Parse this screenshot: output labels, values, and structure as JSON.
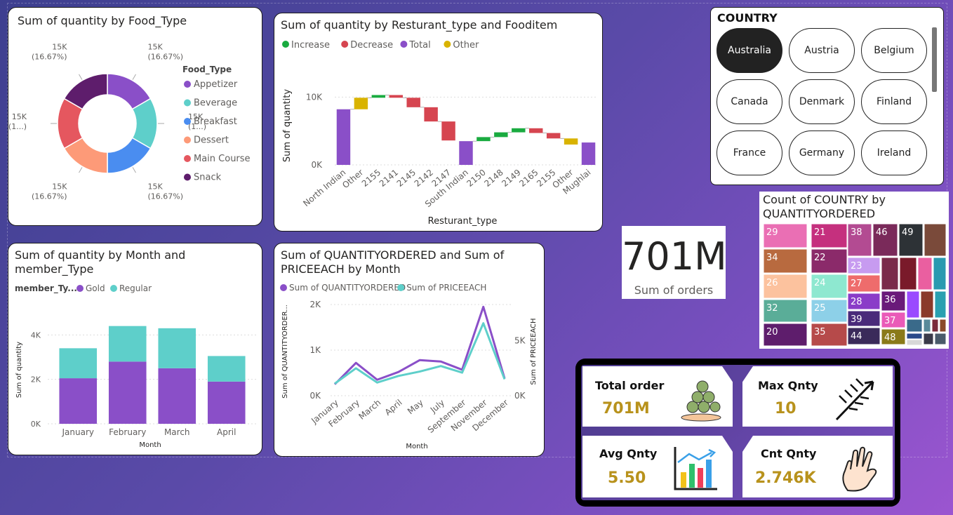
{
  "food_type_chart": {
    "title": "Sum of quantity by Food_Type",
    "legend_title": "Food_Type",
    "chart_data": {
      "type": "pie",
      "title": "Sum of quantity by Food_Type",
      "categories": [
        "Appetizer",
        "Beverage",
        "Breakfast",
        "Dessert",
        "Main Course",
        "Snack"
      ],
      "values": [
        15000,
        15000,
        15000,
        15000,
        15000,
        15000
      ],
      "colors": [
        "#8a4fc8",
        "#5ecfca",
        "#4a8df0",
        "#fd9a78",
        "#e5575f",
        "#5e1d6c"
      ],
      "label_lines": [
        [
          "15K",
          "(16.67%)"
        ],
        [
          "15K",
          "(1...)"
        ],
        [
          "15K",
          "(16.67%)"
        ],
        [
          "15K",
          "(16.67%)"
        ],
        [
          "15K",
          "(1...)"
        ],
        [
          "15K",
          "(16.67%)"
        ]
      ]
    }
  },
  "waterfall_chart": {
    "title": "Sum of quantity by Resturant_type and Fooditem",
    "legend": [
      {
        "label": "Increase",
        "color": "#1aab40"
      },
      {
        "label": "Decrease",
        "color": "#d64550"
      },
      {
        "label": "Total",
        "color": "#8a4fc8"
      },
      {
        "label": "Other",
        "color": "#d9b300"
      }
    ],
    "xlabel": "Resturant_type",
    "ylabel": "Sum of quantity",
    "chart_data": {
      "type": "bar",
      "subtype": "waterfall",
      "categories": [
        "North Indian",
        "Other",
        "2155",
        "2141",
        "2145",
        "2142",
        "2147",
        "South Indian",
        "2150",
        "2148",
        "2149",
        "2165",
        "2155",
        "Other",
        "Mughlai"
      ],
      "kinds": [
        "total",
        "other",
        "increase",
        "decrease",
        "decrease",
        "decrease",
        "decrease",
        "total",
        "increase",
        "increase",
        "increase",
        "decrease",
        "decrease",
        "other",
        "total"
      ],
      "start": [
        0,
        8200,
        9900,
        10300,
        9900,
        8500,
        6400,
        0,
        3500,
        4100,
        4800,
        5400,
        4700,
        3900,
        0
      ],
      "end": [
        8200,
        9900,
        10300,
        9900,
        8500,
        6400,
        3600,
        3500,
        4100,
        4800,
        5400,
        4700,
        3900,
        3000,
        3300
      ],
      "ylim": [
        0,
        12000
      ],
      "ytick_labels": [
        "0K",
        "10K"
      ],
      "ytick_values": [
        0,
        10000
      ]
    }
  },
  "country_slicer": {
    "title": "COUNTRY",
    "items": [
      "Australia",
      "Austria",
      "Belgium",
      "Canada",
      "Denmark",
      "Finland",
      "France",
      "Germany",
      "Ireland"
    ],
    "selected": "Australia"
  },
  "treemap": {
    "title": "Count of COUNTRY by QUANTITYORDERED",
    "chart_data": {
      "type": "heatmap",
      "subtype": "treemap",
      "labels": [
        "29",
        "34",
        "26",
        "32",
        "20",
        "21",
        "22",
        "24",
        "25",
        "35",
        "38",
        "46",
        "49",
        "23",
        "27",
        "28",
        "39",
        "44",
        "36",
        "37",
        "48"
      ]
    }
  },
  "sum_orders_card": {
    "value": "701M",
    "label": "Sum of orders"
  },
  "month_member_chart": {
    "title_line1": "Sum of quantity by Month and",
    "title_line2": "member_Type",
    "legend_title": "member_Ty...",
    "xlabel": "Month",
    "ylabel": "Sum of quantity",
    "chart_data": {
      "type": "bar",
      "subtype": "stacked",
      "categories": [
        "January",
        "February",
        "March",
        "April"
      ],
      "series": [
        {
          "name": "Gold",
          "values": [
            2050,
            2800,
            2500,
            1900
          ],
          "color": "#8a4fc8"
        },
        {
          "name": "Regular",
          "values": [
            1350,
            1600,
            1800,
            1150
          ],
          "color": "#5ecfca"
        }
      ],
      "ylim": [
        0,
        4800
      ],
      "ytick_values": [
        0,
        2000,
        4000
      ],
      "ytick_labels": [
        "0K",
        "2K",
        "4K"
      ]
    }
  },
  "line_chart": {
    "title_line1": "Sum of QUANTITYORDERED and Sum of",
    "title_line2": "PRICEEACH by Month",
    "xlabel": "Month",
    "ylabel_left": "Sum of QUANTITYORDER...",
    "ylabel_right": "Sum of PRICEEACH",
    "chart_data": {
      "type": "line",
      "categories": [
        "January",
        "February",
        "March",
        "April",
        "May",
        "July",
        "September",
        "November",
        "December"
      ],
      "series": [
        {
          "name": "Sum of QUANTITYORDERED",
          "values": [
            250,
            720,
            350,
            520,
            780,
            750,
            570,
            1950,
            380
          ],
          "axis": "left",
          "color": "#8a4fc8"
        },
        {
          "name": "Sum of PRICEEACH",
          "values": [
            1100,
            2500,
            1200,
            1800,
            2200,
            2700,
            2100,
            6600,
            1500
          ],
          "axis": "right",
          "color": "#5ecfca"
        }
      ],
      "ylim_left": [
        0,
        2000
      ],
      "ylim_right": [
        0,
        8300
      ],
      "left_ticks": {
        "values": [
          0,
          1000,
          2000
        ],
        "labels": [
          "0K",
          "1K",
          "2K"
        ]
      },
      "right_ticks": {
        "values": [
          0,
          5000
        ],
        "labels": [
          "0K",
          "5K"
        ]
      }
    }
  },
  "kpi_panel": {
    "total_order": {
      "title": "Total order",
      "value": "701M"
    },
    "max_qnty": {
      "title": "Max Qnty",
      "value": "10"
    },
    "avg_qnty": {
      "title": "Avg Qnty",
      "value": "5.50"
    },
    "cnt_qnty": {
      "title": "Cnt Qnty",
      "value": "2.746K"
    }
  }
}
